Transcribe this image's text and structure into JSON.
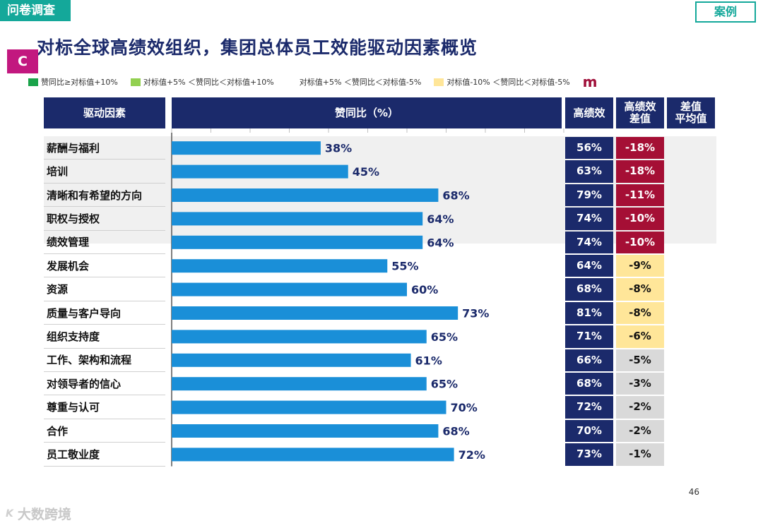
{
  "header": {
    "tag_left": "问卷调查",
    "tag_right": "案例",
    "title": "对标全球高绩效组织，集团总体员工效能驱动因素概览",
    "logo_letter": "C"
  },
  "legend": {
    "items": [
      {
        "label": "赞同比≥对标值+10%",
        "color": "#1aa34a"
      },
      {
        "label": "对标值+5% ＜赞同比＜对标值+10%",
        "color": "#92d050"
      },
      {
        "label": "对标值+5% ＜赞同比＜对标值-5%",
        "color": "#ffffff"
      },
      {
        "label": "对标值-10% ＜赞同比＜对标值-5%",
        "color": "#ffe699"
      }
    ],
    "tail": "m"
  },
  "table": {
    "col_factor": "驱动因素",
    "col_ratio": "赞同比（%）",
    "col_high": "高绩效",
    "col_gap_line1": "高绩效",
    "col_gap_line2": "差值",
    "col_avg_line1": "差值",
    "col_avg_line2": "平均值"
  },
  "colors": {
    "bar": "#1a8fd8",
    "bar_label": "#1b2a6b",
    "header": "#1b2a6b",
    "gap_red": "#a50f35",
    "gap_yellow": "#ffe699",
    "gap_gray": "#d9d9d9"
  },
  "chart_data": {
    "type": "bar",
    "orientation": "horizontal",
    "categories": [
      "薪酬与福利",
      "培训",
      "清晰和有希望的方向",
      "职权与授权",
      "绩效管理",
      "发展机会",
      "资源",
      "质量与客户导向",
      "组织支持度",
      "工作、架构和流程",
      "对领导者的信心",
      "尊重与认可",
      "合作",
      "员工敬业度"
    ],
    "values": [
      38,
      45,
      68,
      64,
      64,
      55,
      60,
      73,
      65,
      61,
      65,
      70,
      68,
      72
    ],
    "value_labels": [
      "38%",
      "45%",
      "68%",
      "64%",
      "64%",
      "55%",
      "60%",
      "73%",
      "65%",
      "61%",
      "65%",
      "70%",
      "68%",
      "72%"
    ],
    "xlim": [
      0,
      100
    ],
    "high_performance": [
      "56%",
      "63%",
      "79%",
      "74%",
      "74%",
      "64%",
      "68%",
      "81%",
      "71%",
      "66%",
      "68%",
      "72%",
      "70%",
      "73%"
    ],
    "gap": [
      "-18%",
      "-18%",
      "-11%",
      "-10%",
      "-10%",
      "-9%",
      "-8%",
      "-8%",
      "-6%",
      "-5%",
      "-3%",
      "-2%",
      "-2%",
      "-1%"
    ],
    "gap_level": [
      "red",
      "red",
      "red",
      "red",
      "red",
      "yellow",
      "yellow",
      "yellow",
      "yellow",
      "gray",
      "gray",
      "gray",
      "gray",
      "gray"
    ]
  },
  "footer": {
    "page_number": "46",
    "watermark": "大数跨境",
    "watermark_icon": "K"
  }
}
